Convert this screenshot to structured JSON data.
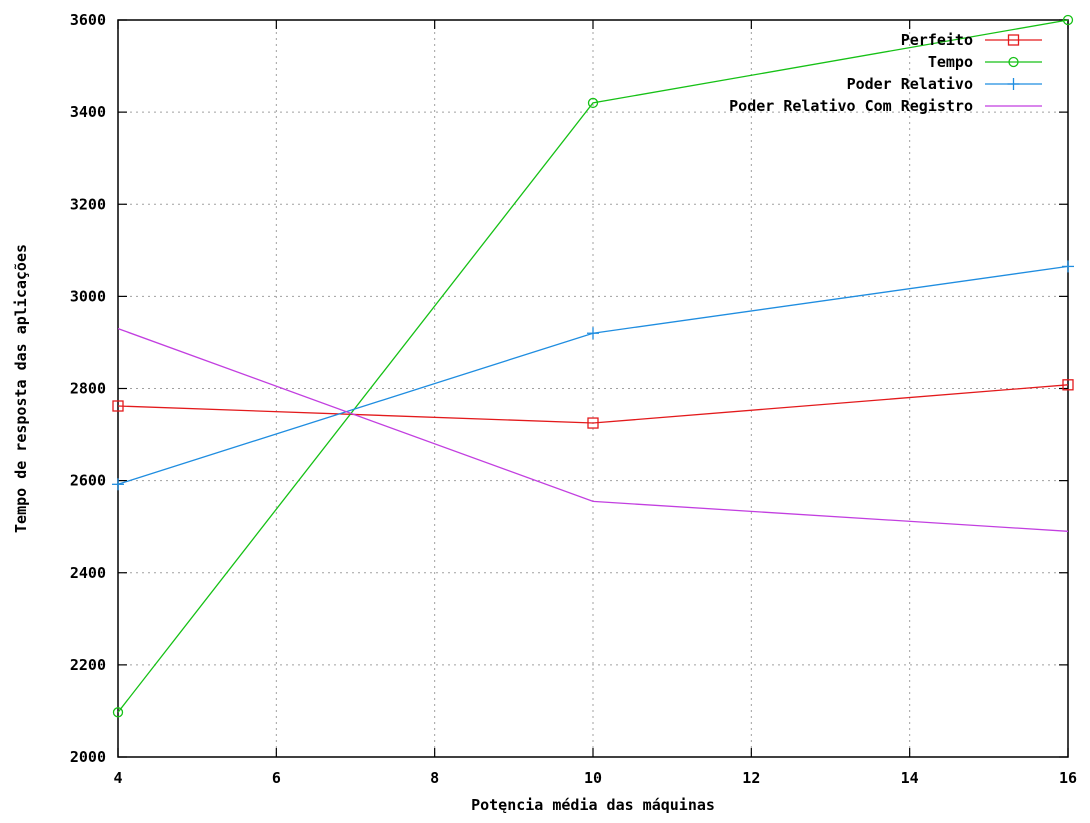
{
  "chart_data": {
    "type": "line",
    "title": "",
    "xlabel": "Potęncia média das máquinas",
    "ylabel": "Tempo de resposta das aplicações",
    "xlim": [
      4,
      16
    ],
    "ylim": [
      2000,
      3600
    ],
    "xticks": [
      4,
      6,
      8,
      10,
      12,
      14,
      16
    ],
    "yticks": [
      2000,
      2200,
      2400,
      2600,
      2800,
      3000,
      3200,
      3400,
      3600
    ],
    "grid": true,
    "legend_position": "top-right",
    "series": [
      {
        "name": "Perfeito",
        "color": "#e31a1c",
        "marker": "square",
        "x": [
          4,
          10,
          16
        ],
        "y": [
          2762,
          2725,
          2808
        ]
      },
      {
        "name": "Tempo",
        "color": "#16c116",
        "marker": "circle",
        "x": [
          4,
          10,
          16
        ],
        "y": [
          2097,
          3420,
          3600
        ]
      },
      {
        "name": "Poder Relativo",
        "color": "#1f8de0",
        "marker": "plus",
        "x": [
          4,
          10,
          16
        ],
        "y": [
          2592,
          2920,
          3065
        ]
      },
      {
        "name": "Poder Relativo Com Registro",
        "color": "#c23fe0",
        "marker": "none",
        "x": [
          4,
          10,
          16
        ],
        "y": [
          2930,
          2555,
          2490
        ]
      }
    ]
  }
}
